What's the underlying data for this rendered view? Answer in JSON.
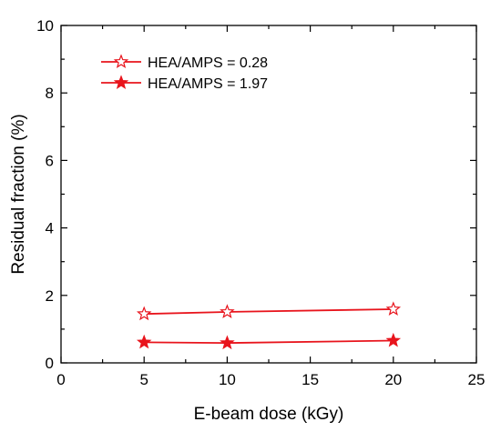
{
  "chart_data": {
    "type": "line",
    "title": "",
    "xlabel": "E-beam dose (kGy)",
    "ylabel": "Residual fraction (%)",
    "xlim": [
      0,
      25
    ],
    "ylim": [
      0,
      10
    ],
    "x_ticks": [
      0,
      5,
      10,
      15,
      20,
      25
    ],
    "y_ticks": [
      0,
      2,
      4,
      6,
      8,
      10
    ],
    "x_tick_labels": [
      "0",
      "5",
      "10",
      "15",
      "20",
      "25"
    ],
    "y_tick_labels": [
      "0",
      "2",
      "4",
      "6",
      "8",
      "10"
    ],
    "grid": false,
    "legend_position": "top-left",
    "series": [
      {
        "name": "HEA/AMPS = 0.28",
        "marker": "open-star",
        "color": "#e8141c",
        "x": [
          5,
          10,
          20
        ],
        "y": [
          1.45,
          1.51,
          1.59
        ]
      },
      {
        "name": "HEA/AMPS = 1.97",
        "marker": "filled-star",
        "color": "#e8141c",
        "x": [
          5,
          10,
          20
        ],
        "y": [
          0.61,
          0.59,
          0.66
        ]
      }
    ]
  }
}
